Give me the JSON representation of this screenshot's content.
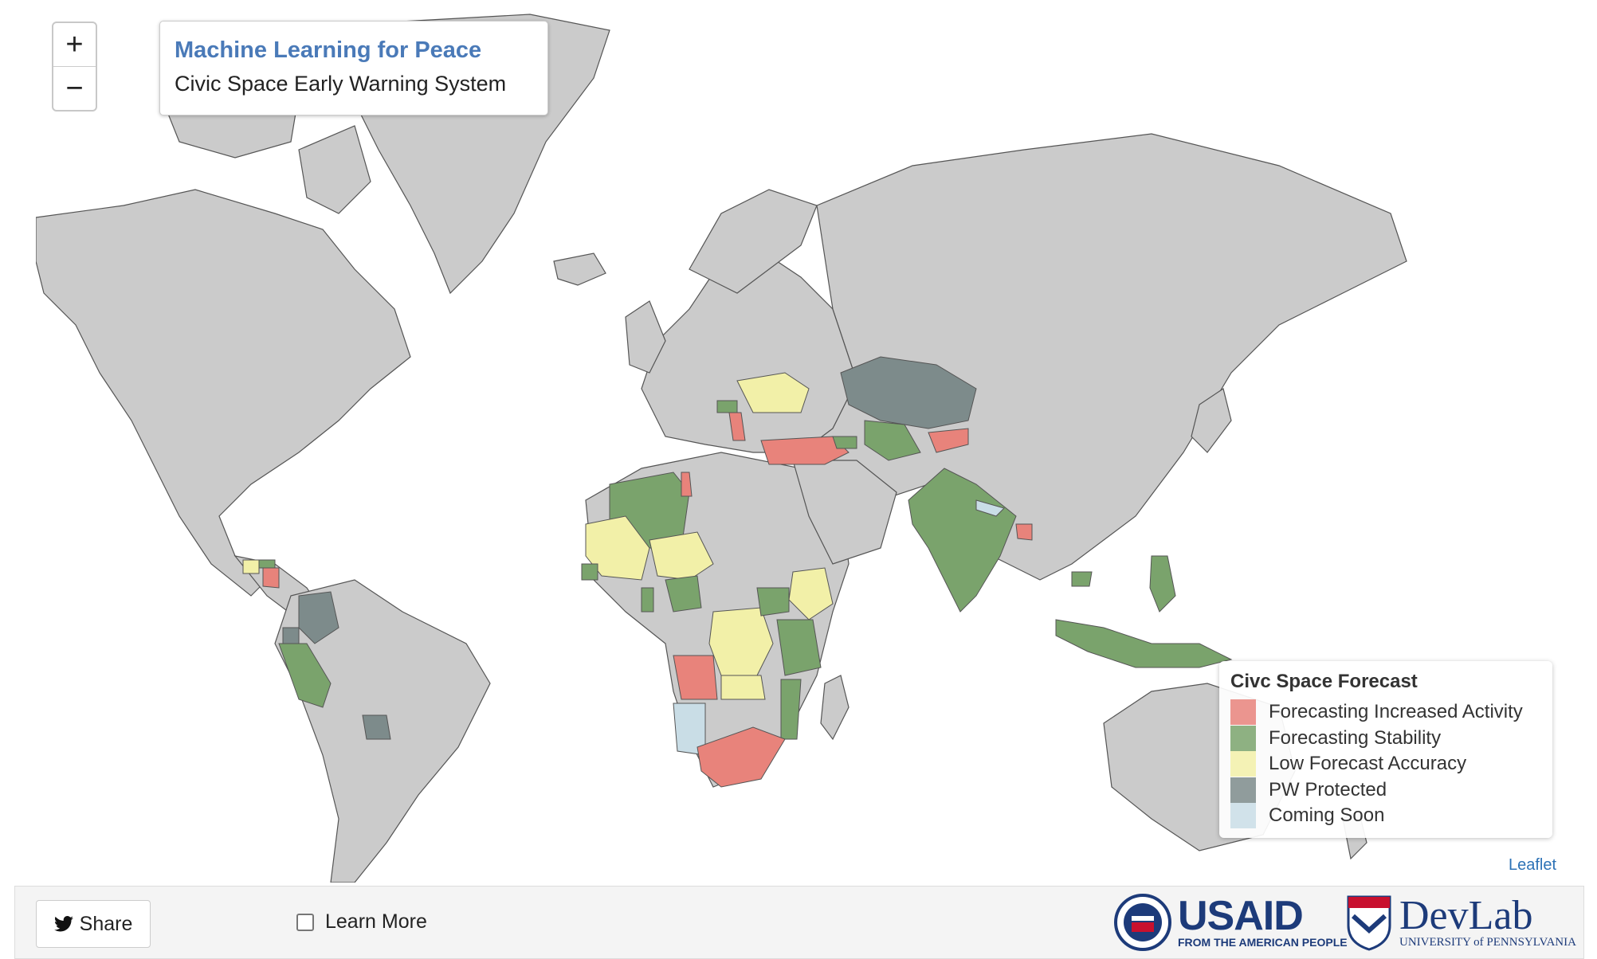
{
  "title": {
    "main": "Machine Learning for Peace",
    "sub": "Civic Space Early Warning System"
  },
  "zoom": {
    "in": "+",
    "out": "−"
  },
  "legend": {
    "title": "Civc Space Forecast",
    "items": [
      {
        "label": "Forecasting Increased Activity",
        "color": "#e8837b"
      },
      {
        "label": "Forecasting Stability",
        "color": "#7aa36c"
      },
      {
        "label": "Low Forecast Accuracy",
        "color": "#f2f0a8"
      },
      {
        "label": "PW Protected",
        "color": "#7d8b8b"
      },
      {
        "label": "Coming Soon",
        "color": "#c9dde6"
      }
    ]
  },
  "attribution": "Leaflet",
  "footer": {
    "share_label": "Share",
    "learn_more_label": "Learn More",
    "usaid_word": "USAID",
    "usaid_tagline": "FROM THE AMERICAN PEOPLE",
    "devlab_word": "DevLab",
    "devlab_tagline": "UNIVERSITY of PENNSYLVANIA"
  },
  "colors": {
    "land": "#cbcbcb",
    "increased": "#e8837b",
    "stability": "#7aa36c",
    "low": "#f2f0a8",
    "protected": "#7d8b8b",
    "soon": "#c9dde6",
    "usaid_blue": "#1d3b7a",
    "usaid_red": "#c8102e"
  }
}
